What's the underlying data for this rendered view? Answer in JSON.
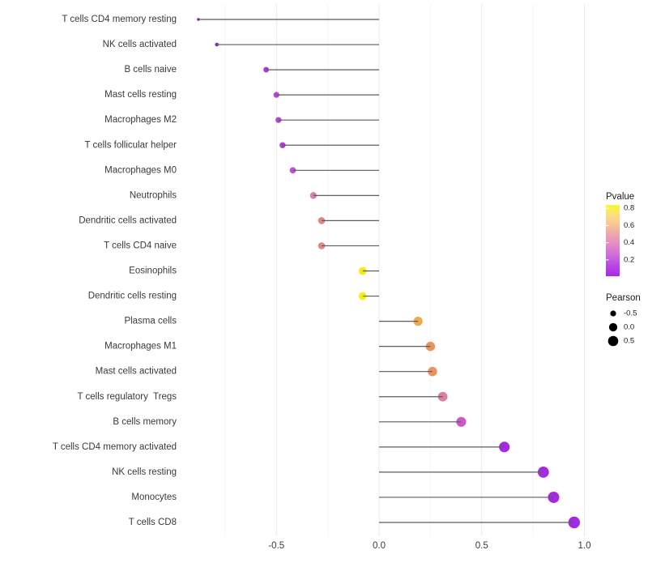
{
  "figure": {
    "background": "#ffffff"
  },
  "chart_data": {
    "type": "scatter",
    "variant": "horizontal-lollipop",
    "title": "",
    "xlabel": "",
    "ylabel": "",
    "grid": true,
    "legend_position": "right",
    "xlim": [
      -0.97,
      1.04
    ],
    "baseline": 0,
    "x_ticks": {
      "values": [
        -0.5,
        0.0,
        0.5,
        1.0
      ],
      "labels": [
        "-0.5",
        "0.0",
        "0.5",
        "1.0"
      ]
    },
    "x_minor_gridlines": [
      -0.75,
      -0.25,
      0.25,
      0.75
    ],
    "points": [
      {
        "label": "T cells CD4 memory resting",
        "pearson": -0.88,
        "color": "#7a1ca8"
      },
      {
        "label": "NK cells activated",
        "pearson": -0.79,
        "color": "#8d28c2"
      },
      {
        "label": "B cells naive",
        "pearson": -0.55,
        "color": "#a93bd2"
      },
      {
        "label": "Mast cells resting",
        "pearson": -0.5,
        "color": "#b346d6"
      },
      {
        "label": "Macrophages M2",
        "pearson": -0.49,
        "color": "#b346d6"
      },
      {
        "label": "T cells follicular helper",
        "pearson": -0.47,
        "color": "#ae40d3"
      },
      {
        "label": "Macrophages M0",
        "pearson": -0.42,
        "color": "#bd52d0"
      },
      {
        "label": "Neutrophils",
        "pearson": -0.32,
        "color": "#d184ab"
      },
      {
        "label": "Dendritic cells activated",
        "pearson": -0.28,
        "color": "#dd8b80"
      },
      {
        "label": "T cells CD4 naive",
        "pearson": -0.28,
        "color": "#dd8b80"
      },
      {
        "label": "Eosinophils",
        "pearson": -0.08,
        "color": "#f5ee11"
      },
      {
        "label": "Dendritic cells resting",
        "pearson": -0.08,
        "color": "#f5ee11"
      },
      {
        "label": "Plasma cells",
        "pearson": 0.19,
        "color": "#edab50"
      },
      {
        "label": "Macrophages M1",
        "pearson": 0.25,
        "color": "#eb9260"
      },
      {
        "label": "Mast cells activated",
        "pearson": 0.26,
        "color": "#eb9260"
      },
      {
        "label": "T cells regulatory  Tregs",
        "pearson": 0.31,
        "color": "#d980a0"
      },
      {
        "label": "B cells memory",
        "pearson": 0.4,
        "color": "#cd57c5"
      },
      {
        "label": "T cells CD4 memory activated",
        "pearson": 0.61,
        "color": "#a42be2"
      },
      {
        "label": "NK cells resting",
        "pearson": 0.8,
        "color": "#a42be2"
      },
      {
        "label": "Monocytes",
        "pearson": 0.85,
        "color": "#a329e4"
      },
      {
        "label": "T cells CD8",
        "pearson": 0.95,
        "color": "#a229e6"
      }
    ],
    "legends": {
      "pvalue": {
        "title": "Pvalue",
        "range": [
          0.01,
          0.84
        ],
        "ticks": [
          {
            "label": "0.8",
            "value": 0.8
          },
          {
            "label": "0.6",
            "value": 0.6
          },
          {
            "label": "0.4",
            "value": 0.4
          },
          {
            "label": "0.2",
            "value": 0.2
          }
        ],
        "gradient_stops": [
          [
            "0%",
            "#fbf724"
          ],
          [
            "14%",
            "#fbdf84"
          ],
          [
            "28%",
            "#f6c494"
          ],
          [
            "42%",
            "#eea4ae"
          ],
          [
            "56%",
            "#e18ac6"
          ],
          [
            "70%",
            "#cf6cdc"
          ],
          [
            "85%",
            "#b847e6"
          ],
          [
            "100%",
            "#a82ae8"
          ]
        ]
      },
      "pearson": {
        "title": "Pearson",
        "items": [
          {
            "label": "-0.5",
            "value": -0.5
          },
          {
            "label": "0.0",
            "value": 0.0
          },
          {
            "label": "0.5",
            "value": 0.5
          }
        ]
      }
    },
    "style": {
      "stem_color": "#5c5c5c",
      "axis_text_color": "#3a3a3a",
      "grid_major_color": "#e8e8e8",
      "grid_minor_color": "#f4f4f4",
      "legend_text_color": "#1c1c1c",
      "size_legend_dot_color": "#000000"
    }
  }
}
